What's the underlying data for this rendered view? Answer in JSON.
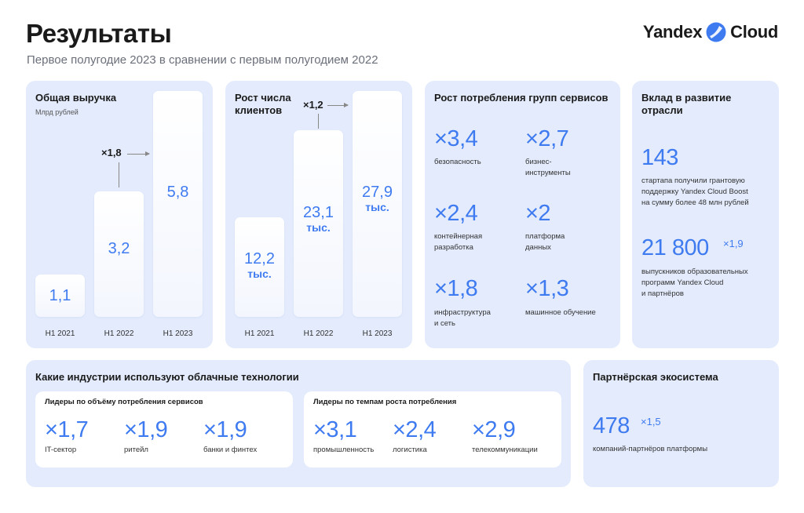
{
  "header": {
    "title": "Результаты",
    "subtitle": "Первое полугодие 2023 в сравнении с первым полугодием 2022",
    "logo_left": "Yandex",
    "logo_right": "Cloud"
  },
  "revenue": {
    "title": "Общая выручка",
    "unit": "Млрд рублей",
    "multiplier": "×1,8",
    "bars": [
      {
        "label": "H1 2021",
        "value": "1,1"
      },
      {
        "label": "H1 2022",
        "value": "3,2"
      },
      {
        "label": "H1 2023",
        "value": "5,8"
      }
    ]
  },
  "clients": {
    "title_line1": "Рост числа",
    "title_line2": "клиентов",
    "multiplier": "×1,2",
    "bars": [
      {
        "label": "H1 2021",
        "value": "12,2",
        "suffix": "тыс."
      },
      {
        "label": "H1 2022",
        "value": "23,1",
        "suffix": "тыс."
      },
      {
        "label": "H1 2023",
        "value": "27,9",
        "suffix": "тыс."
      }
    ]
  },
  "services": {
    "title": "Рост потребления групп сервисов",
    "items": [
      {
        "value": "×3,4",
        "line1": "безопасность",
        "line2": ""
      },
      {
        "value": "×2,7",
        "line1": "бизнес-",
        "line2": "инструменты"
      },
      {
        "value": "×2,4",
        "line1": "контейнерная",
        "line2": "разработка"
      },
      {
        "value": "×2",
        "line1": "платформа",
        "line2": "данных"
      },
      {
        "value": "×1,8",
        "line1": "инфраструктура",
        "line2": "и сеть"
      },
      {
        "value": "×1,3",
        "line1": "машинное обучение",
        "line2": ""
      }
    ]
  },
  "contribution": {
    "title_line1": "Вклад в развитие",
    "title_line2": "отрасли",
    "startups_value": "143",
    "startups_l1": "стартапа получили грантовую",
    "startups_l2": "поддержку Yandex Cloud Boost",
    "startups_l3": "на сумму более 48 млн рублей",
    "grads_value": "21 800",
    "grads_mult": "×1,9",
    "grads_l1": "выпускников образовательных",
    "grads_l2": "программ Yandex Cloud",
    "grads_l3": "и партнёров"
  },
  "industries": {
    "title": "Какие индустрии используют облачные технологии",
    "volume": {
      "title": "Лидеры по объёму потребления сервисов",
      "items": [
        {
          "value": "×1,7",
          "label": "IT-сектор"
        },
        {
          "value": "×1,9",
          "label": "ритейл"
        },
        {
          "value": "×1,9",
          "label": "банки и финтех"
        }
      ]
    },
    "growth": {
      "title": "Лидеры по темпам роста потребления",
      "items": [
        {
          "value": "×3,1",
          "label": "промышленность"
        },
        {
          "value": "×2,4",
          "label": "логистика"
        },
        {
          "value": "×2,9",
          "label": "телекоммуникации"
        }
      ]
    }
  },
  "partners": {
    "title": "Партнёрская экосистема",
    "value": "478",
    "mult": "×1,5",
    "label": "компаний-партнёров платформы"
  },
  "colors": {
    "accent": "#3f7bf0",
    "card": "#e3ebfc"
  }
}
